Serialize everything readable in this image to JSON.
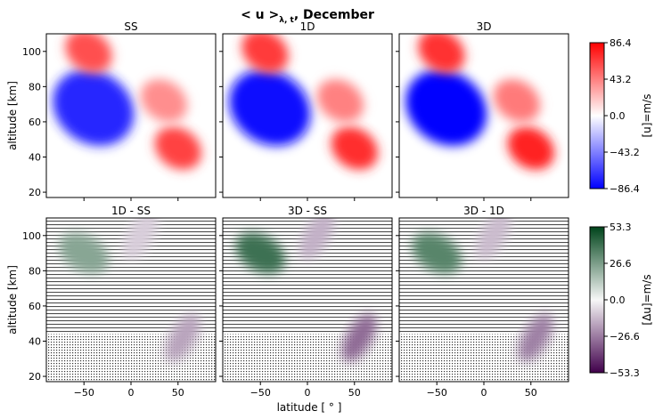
{
  "figure": {
    "title": {
      "before": "< u >",
      "sub": "λ, t",
      "after": ", December"
    }
  },
  "chart_data": {
    "type": "heatmap",
    "description_axes": {
      "xlabel": "latitude [ ° ]",
      "ylabel": "altitude [km]",
      "xlim": [
        -90,
        90
      ],
      "ylim": [
        17,
        110
      ],
      "xticks": [
        -50,
        0,
        50
      ],
      "yticks": [
        20,
        40,
        60,
        80,
        100
      ]
    },
    "panels": [
      {
        "id": "SS",
        "title": "SS",
        "row": 1,
        "col": 1,
        "quantity": "u"
      },
      {
        "id": "1D",
        "title": "1D",
        "row": 1,
        "col": 2,
        "quantity": "u"
      },
      {
        "id": "3D",
        "title": "3D",
        "row": 1,
        "col": 3,
        "quantity": "u"
      },
      {
        "id": "1D-SS",
        "title": "1D - SS",
        "row": 2,
        "col": 1,
        "quantity": "du"
      },
      {
        "id": "3D-SS",
        "title": "3D - SS",
        "row": 2,
        "col": 2,
        "quantity": "du"
      },
      {
        "id": "3D-1D",
        "title": "3D - 1D",
        "row": 2,
        "col": 3,
        "quantity": "du"
      }
    ],
    "features": {
      "u": [
        {
          "name": "westward jet",
          "lat": -40,
          "alt": 68,
          "value": -86.4
        },
        {
          "name": "eastward jet high",
          "lat": -45,
          "alt": 100,
          "value": 70
        },
        {
          "name": "eastward jet low",
          "lat": 50,
          "alt": 45,
          "value": 75
        },
        {
          "name": "eastward jet mid",
          "lat": 35,
          "alt": 72,
          "value": 45
        }
      ],
      "du": [
        {
          "name": "green band",
          "lat": -50,
          "alt": 90,
          "value": 40
        },
        {
          "name": "purple patch",
          "lat": 55,
          "alt": 42,
          "value": -30
        },
        {
          "name": "purple patch upper",
          "lat": 10,
          "alt": 100,
          "value": -15
        }
      ]
    },
    "colorbars": [
      {
        "id": "u",
        "label": "[u]=m/s",
        "cmap": "bwr",
        "ticks": [
          "86.4",
          "43.2",
          "0.0",
          "−43.2",
          "−86.4"
        ],
        "range": [
          -86.4,
          86.4
        ],
        "colors": [
          "#0000ff",
          "#ffffff",
          "#ff0000"
        ]
      },
      {
        "id": "du",
        "label": "[Δu]=m/s",
        "cmap": "PRGn",
        "ticks": [
          "53.3",
          "26.6",
          "0.0",
          "−26.6",
          "−53.3"
        ],
        "range": [
          -53.3,
          53.3
        ],
        "colors": [
          "#40004b",
          "#f7f7f7",
          "#00441b"
        ]
      }
    ]
  }
}
